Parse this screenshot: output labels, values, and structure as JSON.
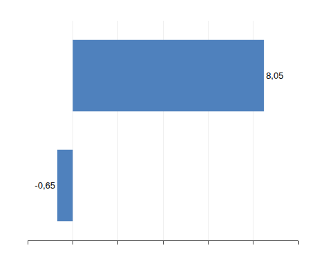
{
  "chart_data": {
    "type": "bar",
    "orientation": "horizontal",
    "categories": [
      null,
      null
    ],
    "values": [
      8.05,
      -0.65
    ],
    "value_labels": [
      "8,05",
      "-0,65"
    ],
    "data_labels": true,
    "color": "#4F81BD",
    "xlim": [
      -1.9,
      9.5
    ],
    "xticks": [
      -1.9,
      0,
      1.9,
      3.8,
      5.7,
      7.6,
      9.5
    ],
    "grid": true,
    "tick_labels": false
  }
}
